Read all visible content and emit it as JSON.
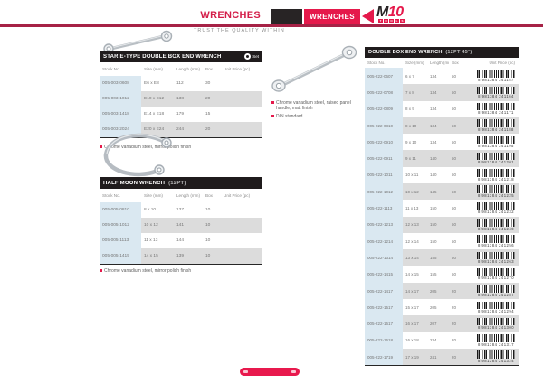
{
  "header": {
    "left_tab": "WRENCHES",
    "banner_tab": "WRENCHES",
    "logo_m": "M",
    "logo_10": "10",
    "logo_tools": "TOOLS",
    "tagline": "TRUST THE QUALITY WITHIN"
  },
  "colors": {
    "accent": "#e5194b",
    "rule": "#a62246",
    "section_bar": "#1f1b1c",
    "stock_column": "#dae8f1",
    "alt_row": "#dcdcdc"
  },
  "sections": {
    "star": {
      "title": "STAR E-TYPE DOUBLE BOX END WRENCH",
      "badge_label": "Set",
      "columns": [
        "Stock No.",
        "Size (mm)",
        "Length (mm)",
        "Box",
        "Unit Price (pc)"
      ],
      "rows": [
        [
          "005-003-0608",
          "E6 x E8",
          "112",
          "30"
        ],
        [
          "005-003-1012",
          "E10 x E12",
          "138",
          "20"
        ],
        [
          "005-003-1418",
          "E14 x E18",
          "179",
          "15"
        ],
        [
          "005-003-2024",
          "E20 x E24",
          "244",
          "20"
        ]
      ],
      "note": "Chrome vanadium steel, mirror polish finish"
    },
    "halfmoon": {
      "title": "HALF MOON WRENCH",
      "suffix": "(12PT)",
      "columns": [
        "Stock No.",
        "Size (mm)",
        "Length (mm)",
        "Box",
        "Unit Price (pc)"
      ],
      "rows": [
        [
          "005-005-0810",
          "8 x 10",
          "137",
          "10"
        ],
        [
          "005-005-1012",
          "10 x 12",
          "141",
          "10"
        ],
        [
          "005-005-1113",
          "11 x 13",
          "144",
          "10"
        ],
        [
          "005-005-1415",
          "14 x 15",
          "139",
          "10"
        ]
      ],
      "note": "Chrome vanadium steel, mirror polish finish"
    },
    "double": {
      "title": "DOUBLE BOX END WRENCH",
      "suffix": "(12PT 45°)",
      "columns": [
        "Stock No.",
        "Size (mm)",
        "Length (mm)",
        "Box",
        "Unit Price (pc)"
      ],
      "rows": [
        [
          "005-222-0607",
          "6 x 7",
          "134",
          "50",
          "8 981384 241157"
        ],
        [
          "005-222-0708",
          "7 x 8",
          "134",
          "50",
          "8 981384 241164"
        ],
        [
          "005-222-0809",
          "8 x 9",
          "134",
          "50",
          "8 981384 241171"
        ],
        [
          "005-222-0810",
          "8 x 10",
          "134",
          "50",
          "8 981384 241188"
        ],
        [
          "005-222-0910",
          "9 x 10",
          "134",
          "50",
          "8 981384 241195"
        ],
        [
          "005-222-0911",
          "9 x 11",
          "140",
          "50",
          "8 981384 241201"
        ],
        [
          "005-222-1011",
          "10 x 11",
          "140",
          "50",
          "8 981384 241218"
        ],
        [
          "005-222-1012",
          "10 x 12",
          "145",
          "50",
          "8 981384 241225"
        ],
        [
          "005-222-1113",
          "11 x 13",
          "150",
          "50",
          "8 981384 241232"
        ],
        [
          "005-222-1213",
          "12 x 13",
          "150",
          "50",
          "8 981384 241249"
        ],
        [
          "005-222-1214",
          "12 x 14",
          "150",
          "50",
          "8 981384 241256"
        ],
        [
          "005-222-1314",
          "13 x 14",
          "155",
          "50",
          "8 981384 241263"
        ],
        [
          "005-222-1415",
          "14 x 15",
          "155",
          "50",
          "8 981384 241270"
        ],
        [
          "005-222-1417",
          "14 x 17",
          "205",
          "20",
          "8 981384 241287"
        ],
        [
          "005-222-1517",
          "15 x 17",
          "205",
          "20",
          "8 981384 241294"
        ],
        [
          "005-222-1617",
          "16 x 17",
          "207",
          "20",
          "8 981384 241300"
        ],
        [
          "005-222-1618",
          "16 x 18",
          "234",
          "20",
          "8 981384 241317"
        ],
        [
          "005-222-1719",
          "17 x 19",
          "241",
          "20",
          "8 981384 241324"
        ]
      ],
      "notes": [
        "Chrome vanadium steel, raised panel handle, matt finish",
        "DIN standard"
      ]
    }
  }
}
